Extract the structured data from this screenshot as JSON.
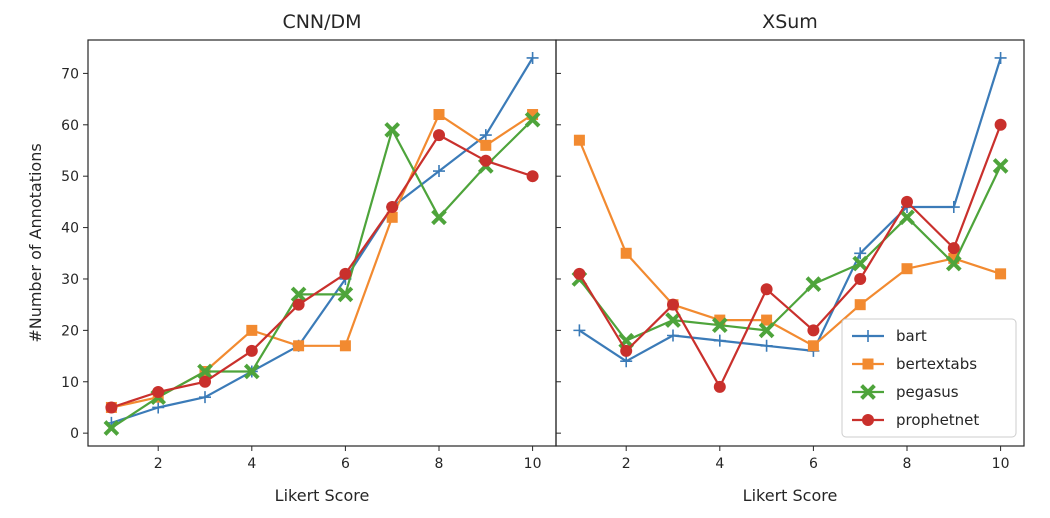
{
  "chart_data": [
    {
      "type": "line",
      "title": "CNN/DM",
      "xlabel": "Likert Score",
      "ylabel": "#Number of Annotations",
      "x": [
        1,
        2,
        3,
        4,
        5,
        6,
        7,
        8,
        9,
        10
      ],
      "xlim": [
        0.5,
        10.5
      ],
      "ylim": [
        -2.5,
        76.5
      ],
      "xticks": [
        2,
        4,
        6,
        8,
        10
      ],
      "yticks": [
        0,
        10,
        20,
        30,
        40,
        50,
        60,
        70
      ],
      "grid": false,
      "series": [
        {
          "name": "bart",
          "values": [
            2,
            5,
            7,
            12,
            17,
            30,
            44,
            51,
            58,
            73
          ]
        },
        {
          "name": "bertextabs",
          "values": [
            5,
            7,
            12,
            20,
            17,
            17,
            42,
            62,
            56,
            62
          ]
        },
        {
          "name": "pegasus",
          "values": [
            1,
            7,
            12,
            12,
            27,
            27,
            59,
            42,
            52,
            61
          ]
        },
        {
          "name": "prophetnet",
          "values": [
            5,
            8,
            10,
            16,
            25,
            31,
            44,
            58,
            53,
            50
          ]
        }
      ]
    },
    {
      "type": "line",
      "title": "XSum",
      "xlabel": "Likert Score",
      "ylabel": "",
      "x": [
        1,
        2,
        3,
        4,
        5,
        6,
        7,
        8,
        9,
        10
      ],
      "xlim": [
        0.5,
        10.5
      ],
      "ylim": [
        -2.5,
        76.5
      ],
      "xticks": [
        2,
        4,
        6,
        8,
        10
      ],
      "yticks": [
        0,
        10,
        20,
        30,
        40,
        50,
        60,
        70
      ],
      "grid": false,
      "legend": "lower-right",
      "series": [
        {
          "name": "bart",
          "values": [
            20,
            14,
            19,
            18,
            17,
            16,
            35,
            44,
            44,
            73
          ]
        },
        {
          "name": "bertextabs",
          "values": [
            57,
            35,
            25,
            22,
            22,
            17,
            25,
            32,
            34,
            31
          ]
        },
        {
          "name": "pegasus",
          "values": [
            30,
            18,
            22,
            21,
            20,
            29,
            33,
            42,
            33,
            52
          ]
        },
        {
          "name": "prophetnet",
          "values": [
            31,
            16,
            25,
            9,
            28,
            20,
            30,
            45,
            36,
            60
          ]
        }
      ]
    }
  ],
  "series_style": [
    {
      "color": "#3b7bb8",
      "marker": "plus"
    },
    {
      "color": "#f28a30",
      "marker": "square"
    },
    {
      "color": "#4ea43b",
      "marker": "x"
    },
    {
      "color": "#c9302c",
      "marker": "circle"
    }
  ]
}
